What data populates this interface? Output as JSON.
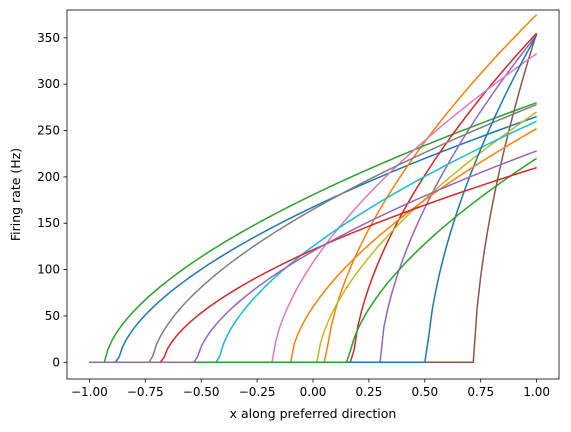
{
  "chart_data": {
    "type": "line",
    "title": "",
    "xlabel": "x along preferred direction",
    "ylabel": "Firing rate (Hz)",
    "xlim": [
      -1.1,
      1.1
    ],
    "ylim": [
      -18,
      380
    ],
    "xticks": [
      -1.0,
      -0.75,
      -0.5,
      -0.25,
      0.0,
      0.25,
      0.5,
      0.75,
      1.0
    ],
    "xtick_labels": [
      "−1.00",
      "−0.75",
      "−0.50",
      "−0.25",
      "0.00",
      "0.25",
      "0.50",
      "0.75",
      "1.00"
    ],
    "yticks": [
      0,
      50,
      100,
      150,
      200,
      250,
      300,
      350
    ],
    "ytick_labels": [
      "0",
      "50",
      "100",
      "150",
      "200",
      "250",
      "300",
      "350"
    ],
    "grid": false,
    "legend": "none",
    "series": [
      {
        "color": "#1f77b4",
        "x0": -0.87,
        "y_end": 265
      },
      {
        "color": "#ff7f0e",
        "x0": 0.06,
        "y_end": 375
      },
      {
        "color": "#2ca02c",
        "x0": -0.93,
        "y_end": 280
      },
      {
        "color": "#d62728",
        "x0": 0.18,
        "y_end": 355
      },
      {
        "color": "#9467bd",
        "x0": 0.3,
        "y_end": 353
      },
      {
        "color": "#8c564b",
        "x0": 0.72,
        "y_end": 355
      },
      {
        "color": "#e377c2",
        "x0": -0.18,
        "y_end": 333
      },
      {
        "color": "#7f7f7f",
        "x0": -0.72,
        "y_end": 278
      },
      {
        "color": "#bcbd22",
        "x0": 0.02,
        "y_end": 270
      },
      {
        "color": "#17becf",
        "x0": -0.42,
        "y_end": 260
      },
      {
        "color": "#1f77b4",
        "x0": 0.51,
        "y_end": 353
      },
      {
        "color": "#ff7f0e",
        "x0": -0.1,
        "y_end": 252
      },
      {
        "color": "#2ca02c",
        "x0": 0.16,
        "y_end": 220
      },
      {
        "color": "#d62728",
        "x0": -0.67,
        "y_end": 210
      },
      {
        "color": "#9467bd",
        "x0": -0.52,
        "y_end": 228
      }
    ]
  }
}
